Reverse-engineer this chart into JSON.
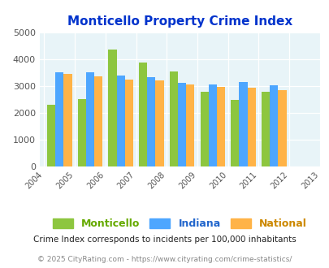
{
  "title": "Monticello Property Crime Index",
  "years": [
    2005,
    2006,
    2007,
    2008,
    2009,
    2010,
    2011,
    2012
  ],
  "monticello": [
    2300,
    2490,
    4350,
    3870,
    3540,
    2780,
    2460,
    2790
  ],
  "indiana": [
    3490,
    3500,
    3380,
    3330,
    3110,
    3060,
    3150,
    3030
  ],
  "national": [
    3430,
    3340,
    3230,
    3190,
    3040,
    2960,
    2940,
    2840
  ],
  "color_monticello": "#8dc63f",
  "color_indiana": "#4da6ff",
  "color_national": "#ffb347",
  "ylim": [
    0,
    5000
  ],
  "yticks": [
    0,
    1000,
    2000,
    3000,
    4000,
    5000
  ],
  "bg_color": "#e8f4f8",
  "title_color": "#0033cc",
  "legend_labels": [
    "Monticello",
    "Indiana",
    "National"
  ],
  "legend_label_colors": [
    "#66aa00",
    "#2266cc",
    "#cc8800"
  ],
  "footnote1": "Crime Index corresponds to incidents per 100,000 inhabitants",
  "footnote2": "© 2025 CityRating.com - https://www.cityrating.com/crime-statistics/",
  "footnote1_color": "#222222",
  "footnote2_color": "#888888"
}
